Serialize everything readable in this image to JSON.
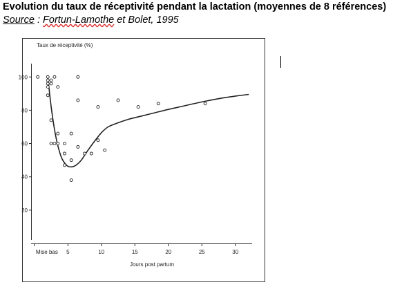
{
  "header": {
    "title": "Evolution du taux de réceptivité pendant la lactation (moyennes de 8 références)",
    "source_label": "Source",
    "source_sep": " : ",
    "source_author": "Fortun-Lamothe",
    "source_rest": " et Bolet, 1995"
  },
  "colors": {
    "ink": "#222222",
    "frame": "#333333"
  },
  "chart_data": {
    "type": "scatter",
    "ylabel": "Taux de réceptivité (%)",
    "xlabel": "Jours post partum",
    "xlim": [
      -0.5,
      32.5
    ],
    "ylim": [
      0,
      108
    ],
    "x_ticks": [
      {
        "v": 0,
        "label": "Mise bas"
      },
      {
        "v": 5,
        "label": "5"
      },
      {
        "v": 10,
        "label": "10"
      },
      {
        "v": 15,
        "label": "15"
      },
      {
        "v": 20,
        "label": "20"
      },
      {
        "v": 25,
        "label": "25"
      },
      {
        "v": 30,
        "label": "30"
      }
    ],
    "y_ticks": [
      {
        "v": 20,
        "label": "20"
      },
      {
        "v": 40,
        "label": "40"
      },
      {
        "v": 60,
        "label": "60"
      },
      {
        "v": 80,
        "label": "80"
      },
      {
        "v": 100,
        "label": "100"
      }
    ],
    "points": [
      [
        0.5,
        100
      ],
      [
        2,
        100
      ],
      [
        2,
        98
      ],
      [
        2,
        96
      ],
      [
        2,
        94
      ],
      [
        2.5,
        98
      ],
      [
        2.5,
        96
      ],
      [
        3,
        100
      ],
      [
        2,
        89
      ],
      [
        3.5,
        94
      ],
      [
        6.5,
        100
      ],
      [
        6.5,
        86
      ],
      [
        12.5,
        86
      ],
      [
        18.5,
        84
      ],
      [
        9.5,
        82
      ],
      [
        15.5,
        82
      ],
      [
        25.5,
        84
      ],
      [
        2.5,
        74
      ],
      [
        3.5,
        66
      ],
      [
        5.5,
        66
      ],
      [
        3.5,
        60
      ],
      [
        2.5,
        60
      ],
      [
        3,
        60
      ],
      [
        4.5,
        60
      ],
      [
        4.5,
        54
      ],
      [
        6.5,
        58
      ],
      [
        9.5,
        62
      ],
      [
        10.5,
        56
      ],
      [
        8.5,
        54
      ],
      [
        7.5,
        54
      ],
      [
        4.5,
        47
      ],
      [
        5.5,
        50
      ],
      [
        5.5,
        38
      ]
    ],
    "curve": [
      [
        2,
        100
      ],
      [
        2.5,
        82
      ],
      [
        3.2,
        64
      ],
      [
        4,
        52
      ],
      [
        4.8,
        47
      ],
      [
        5.5,
        46
      ],
      [
        6.2,
        47
      ],
      [
        7,
        50
      ],
      [
        8,
        56
      ],
      [
        9,
        61.5
      ],
      [
        10,
        66.5
      ],
      [
        11,
        70
      ],
      [
        12.5,
        72.5
      ],
      [
        14,
        74.5
      ],
      [
        16,
        76.5
      ],
      [
        18,
        78.5
      ],
      [
        20,
        80.5
      ],
      [
        22,
        82.3
      ],
      [
        24,
        84.1
      ],
      [
        26,
        85.8
      ],
      [
        28,
        87.3
      ],
      [
        30,
        88.5
      ],
      [
        32,
        89.5
      ]
    ]
  }
}
